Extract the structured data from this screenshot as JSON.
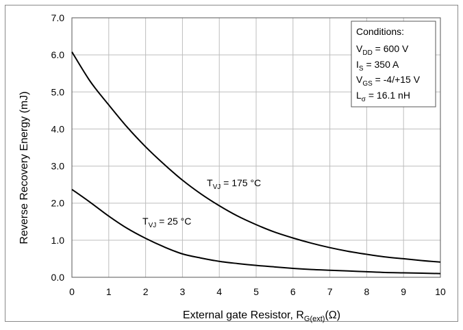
{
  "chart_data": {
    "type": "line",
    "xlabel": "External gate Resistor, R",
    "xlabel_sub": "G(ext)",
    "xlabel_unit": "(Ω)",
    "ylabel": "Reverse Recovery Energy (mJ)",
    "xlim": [
      0,
      10
    ],
    "ylim": [
      0,
      7
    ],
    "x_ticks": [
      "0",
      "1",
      "2",
      "3",
      "4",
      "5",
      "6",
      "7",
      "8",
      "9",
      "10"
    ],
    "y_ticks": [
      "0.0",
      "1.0",
      "2.0",
      "3.0",
      "4.0",
      "5.0",
      "6.0",
      "7.0"
    ],
    "grid": true,
    "series": [
      {
        "name": "T_VJ = 175 °C",
        "label_main": "T",
        "label_sub": "VJ",
        "label_rest": " = 175 °C",
        "x": [
          0,
          0.5,
          1,
          1.5,
          2,
          2.5,
          3,
          3.5,
          4,
          4.5,
          5,
          5.5,
          6,
          6.5,
          7,
          7.5,
          8,
          8.5,
          9,
          9.5,
          10
        ],
        "y": [
          6.08,
          5.28,
          4.65,
          4.05,
          3.52,
          3.05,
          2.62,
          2.25,
          1.93,
          1.65,
          1.42,
          1.22,
          1.06,
          0.92,
          0.8,
          0.7,
          0.62,
          0.55,
          0.5,
          0.45,
          0.41
        ]
      },
      {
        "name": "T_VJ = 25 °C",
        "label_main": "T",
        "label_sub": "VJ",
        "label_rest": " = 25 °C",
        "x": [
          0,
          0.5,
          1,
          1.5,
          2,
          2.5,
          3,
          3.5,
          4,
          4.5,
          5,
          5.5,
          6,
          6.5,
          7,
          7.5,
          8,
          8.5,
          9,
          9.5,
          10
        ],
        "y": [
          2.37,
          2.02,
          1.65,
          1.32,
          1.05,
          0.82,
          0.63,
          0.52,
          0.43,
          0.37,
          0.32,
          0.28,
          0.24,
          0.21,
          0.19,
          0.17,
          0.15,
          0.13,
          0.12,
          0.11,
          0.1
        ]
      }
    ],
    "conditions": {
      "title": "Conditions:",
      "lines": [
        {
          "main": "V",
          "sub": "DD",
          "rest": " = 600 V"
        },
        {
          "main": "I",
          "sub": "S",
          "rest": " = 350 A"
        },
        {
          "main": "V",
          "sub": "GS",
          "rest": " = -4/+15 V"
        },
        {
          "main": "L",
          "sub": "σ",
          "rest": " = 16.1 nH"
        }
      ]
    }
  }
}
